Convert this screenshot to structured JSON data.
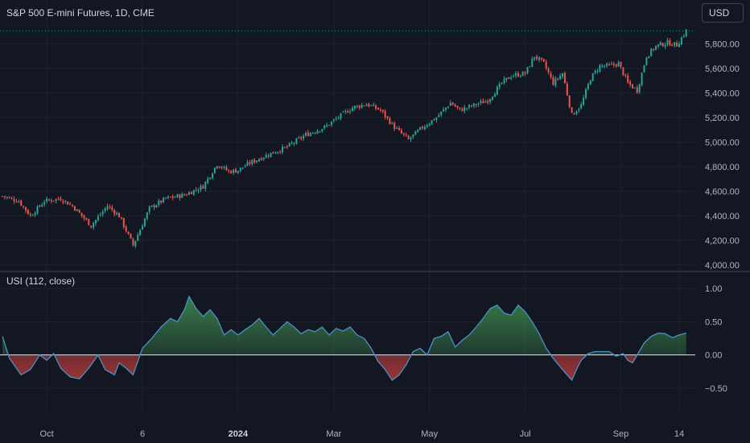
{
  "header": {
    "title": "S&P 500 E-mini Futures, 1D, CME",
    "currency": "USD",
    "indicator_title": "USI (112, close)"
  },
  "colors": {
    "background": "#131722",
    "grid": "#1e222d",
    "up": "#26a69a",
    "down": "#ef5350",
    "usi_line": "#4a90c8",
    "zero_line": "#e0e3eb",
    "fill_positive": "#3f8f4f",
    "fill_negative": "#b03a3a"
  },
  "chart_data": [
    {
      "type": "candlestick",
      "title": "S&P 500 E-mini Futures, 1D, CME",
      "y_ticks": [
        "5,800.00",
        "5,600.00",
        "5,400.00",
        "5,200.00",
        "5,000.00",
        "4,800.00",
        "4,600.00",
        "4,400.00",
        "4,200.00",
        "4,000.00"
      ],
      "y_tick_values": [
        5800,
        5600,
        5400,
        5200,
        5000,
        4800,
        4600,
        4400,
        4200,
        4000
      ],
      "ylim": [
        3960,
        5960
      ],
      "x_ticks": [
        {
          "label": "Oct",
          "index": 19,
          "bold": false
        },
        {
          "label": "6",
          "index": 60,
          "bold": false
        },
        {
          "label": "2024",
          "index": 101,
          "bold": true
        },
        {
          "label": "Mar",
          "index": 142,
          "bold": false
        },
        {
          "label": "May",
          "index": 183,
          "bold": false
        },
        {
          "label": "Jul",
          "index": 224,
          "bold": false
        },
        {
          "label": "Sep",
          "index": 265,
          "bold": false
        },
        {
          "label": "14",
          "index": 290,
          "bold": false
        }
      ],
      "grid": true,
      "last_price": 5905,
      "close_path": [
        [
          0,
          4560
        ],
        [
          7,
          4520
        ],
        [
          12,
          4400
        ],
        [
          18,
          4520
        ],
        [
          25,
          4540
        ],
        [
          30,
          4480
        ],
        [
          38,
          4320
        ],
        [
          45,
          4480
        ],
        [
          50,
          4400
        ],
        [
          56,
          4160
        ],
        [
          63,
          4460
        ],
        [
          70,
          4540
        ],
        [
          78,
          4570
        ],
        [
          86,
          4640
        ],
        [
          92,
          4820
        ],
        [
          97,
          4760
        ],
        [
          101,
          4770
        ],
        [
          106,
          4830
        ],
        [
          114,
          4900
        ],
        [
          122,
          4960
        ],
        [
          130,
          5060
        ],
        [
          138,
          5120
        ],
        [
          146,
          5230
        ],
        [
          150,
          5280
        ],
        [
          156,
          5310
        ],
        [
          162,
          5260
        ],
        [
          168,
          5120
        ],
        [
          174,
          5020
        ],
        [
          180,
          5120
        ],
        [
          186,
          5200
        ],
        [
          192,
          5320
        ],
        [
          196,
          5260
        ],
        [
          202,
          5300
        ],
        [
          208,
          5340
        ],
        [
          214,
          5480
        ],
        [
          218,
          5540
        ],
        [
          224,
          5560
        ],
        [
          228,
          5700
        ],
        [
          232,
          5640
        ],
        [
          236,
          5480
        ],
        [
          240,
          5560
        ],
        [
          244,
          5220
        ],
        [
          248,
          5300
        ],
        [
          252,
          5520
        ],
        [
          256,
          5620
        ],
        [
          260,
          5620
        ],
        [
          264,
          5640
        ],
        [
          268,
          5480
        ],
        [
          272,
          5420
        ],
        [
          276,
          5700
        ],
        [
          280,
          5780
        ],
        [
          285,
          5810
        ],
        [
          289,
          5790
        ],
        [
          293,
          5905
        ]
      ]
    },
    {
      "type": "area",
      "title": "USI (112, close)",
      "y_ticks": [
        "1.00",
        "0.50",
        "0.00",
        "−0.50"
      ],
      "y_tick_values": [
        1.0,
        0.5,
        0.0,
        -0.5
      ],
      "ylim": [
        -0.72,
        1.1
      ],
      "baseline": 0,
      "points": [
        [
          0,
          0.28
        ],
        [
          3,
          -0.05
        ],
        [
          8,
          -0.3
        ],
        [
          12,
          -0.22
        ],
        [
          16,
          0.0
        ],
        [
          19,
          -0.08
        ],
        [
          22,
          0.02
        ],
        [
          25,
          -0.2
        ],
        [
          29,
          -0.33
        ],
        [
          33,
          -0.36
        ],
        [
          37,
          -0.2
        ],
        [
          41,
          0.0
        ],
        [
          44,
          -0.22
        ],
        [
          48,
          -0.3
        ],
        [
          50,
          -0.12
        ],
        [
          53,
          -0.2
        ],
        [
          56,
          -0.3
        ],
        [
          60,
          0.1
        ],
        [
          64,
          0.25
        ],
        [
          68,
          0.42
        ],
        [
          72,
          0.55
        ],
        [
          75,
          0.5
        ],
        [
          78,
          0.68
        ],
        [
          80,
          0.88
        ],
        [
          83,
          0.7
        ],
        [
          86,
          0.58
        ],
        [
          89,
          0.68
        ],
        [
          92,
          0.55
        ],
        [
          95,
          0.3
        ],
        [
          98,
          0.38
        ],
        [
          101,
          0.3
        ],
        [
          104,
          0.38
        ],
        [
          107,
          0.45
        ],
        [
          110,
          0.55
        ],
        [
          113,
          0.42
        ],
        [
          116,
          0.3
        ],
        [
          119,
          0.4
        ],
        [
          122,
          0.5
        ],
        [
          125,
          0.42
        ],
        [
          128,
          0.32
        ],
        [
          131,
          0.38
        ],
        [
          134,
          0.35
        ],
        [
          137,
          0.42
        ],
        [
          140,
          0.3
        ],
        [
          143,
          0.4
        ],
        [
          146,
          0.36
        ],
        [
          149,
          0.42
        ],
        [
          152,
          0.3
        ],
        [
          155,
          0.25
        ],
        [
          158,
          0.1
        ],
        [
          161,
          -0.1
        ],
        [
          164,
          -0.22
        ],
        [
          167,
          -0.38
        ],
        [
          170,
          -0.3
        ],
        [
          173,
          -0.15
        ],
        [
          176,
          0.05
        ],
        [
          179,
          0.1
        ],
        [
          182,
          0.0
        ],
        [
          185,
          0.25
        ],
        [
          188,
          0.28
        ],
        [
          191,
          0.35
        ],
        [
          194,
          0.12
        ],
        [
          197,
          0.22
        ],
        [
          200,
          0.3
        ],
        [
          203,
          0.42
        ],
        [
          206,
          0.55
        ],
        [
          209,
          0.7
        ],
        [
          212,
          0.75
        ],
        [
          215,
          0.63
        ],
        [
          218,
          0.6
        ],
        [
          221,
          0.75
        ],
        [
          224,
          0.65
        ],
        [
          227,
          0.5
        ],
        [
          230,
          0.32
        ],
        [
          233,
          0.1
        ],
        [
          236,
          -0.05
        ],
        [
          239,
          -0.18
        ],
        [
          242,
          -0.3
        ],
        [
          244,
          -0.38
        ],
        [
          246,
          -0.22
        ],
        [
          248,
          -0.08
        ],
        [
          251,
          0.02
        ],
        [
          254,
          0.05
        ],
        [
          257,
          0.05
        ],
        [
          260,
          0.05
        ],
        [
          263,
          -0.02
        ],
        [
          266,
          0.02
        ],
        [
          268,
          -0.08
        ],
        [
          270,
          -0.12
        ],
        [
          272,
          0.0
        ],
        [
          275,
          0.18
        ],
        [
          278,
          0.28
        ],
        [
          281,
          0.33
        ],
        [
          284,
          0.32
        ],
        [
          287,
          0.26
        ],
        [
          290,
          0.3
        ],
        [
          293,
          0.33
        ]
      ]
    }
  ]
}
